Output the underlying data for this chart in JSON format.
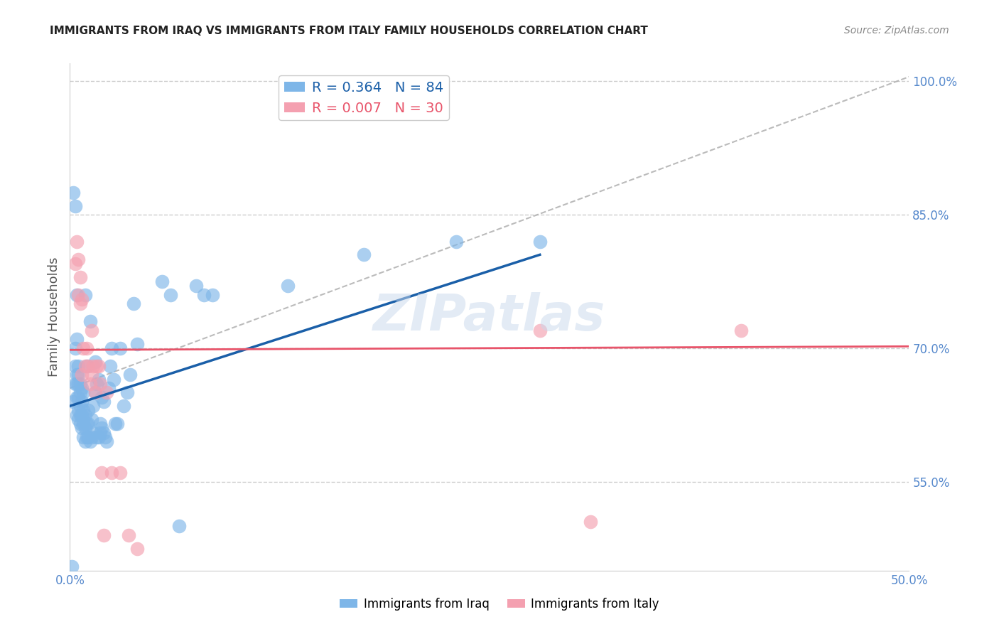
{
  "title": "IMMIGRANTS FROM IRAQ VS IMMIGRANTS FROM ITALY FAMILY HOUSEHOLDS CORRELATION CHART",
  "source_text": "Source: ZipAtlas.com",
  "xlabel": "",
  "ylabel": "Family Households",
  "watermark": "ZIPatlas",
  "xlim": [
    0.0,
    0.5
  ],
  "ylim": [
    0.45,
    1.02
  ],
  "xticks": [
    0.0,
    0.1,
    0.2,
    0.3,
    0.4,
    0.5
  ],
  "xticklabels": [
    "0.0%",
    "",
    "",
    "",
    "",
    "50.0%"
  ],
  "ytick_right": [
    0.55,
    0.7,
    0.85,
    1.0
  ],
  "ytick_right_labels": [
    "55.0%",
    "70.0%",
    "85.0%",
    "100.0%"
  ],
  "legend1_label": "Immigrants from Iraq",
  "legend2_label": "Immigrants from Italy",
  "r_iraq": 0.364,
  "n_iraq": 84,
  "r_italy": 0.007,
  "n_italy": 30,
  "iraq_color": "#7eb6e8",
  "italy_color": "#f4a0b0",
  "iraq_line_color": "#1a5fa8",
  "italy_line_color": "#e8546a",
  "ref_line_color": "#aaaaaa",
  "grid_color": "#cccccc",
  "title_color": "#222222",
  "right_axis_color": "#5588cc",
  "iraq_line_x": [
    0.0,
    0.28
  ],
  "iraq_line_y": [
    0.635,
    0.805
  ],
  "italy_line_x": [
    0.0,
    0.5
  ],
  "italy_line_y": [
    0.698,
    0.702
  ],
  "ref_line_x": [
    0.0,
    0.5
  ],
  "ref_line_y": [
    0.655,
    1.005
  ],
  "iraq_x": [
    0.001,
    0.002,
    0.002,
    0.003,
    0.003,
    0.003,
    0.003,
    0.004,
    0.004,
    0.004,
    0.004,
    0.004,
    0.004,
    0.005,
    0.005,
    0.005,
    0.005,
    0.005,
    0.005,
    0.006,
    0.006,
    0.006,
    0.006,
    0.006,
    0.007,
    0.007,
    0.007,
    0.007,
    0.008,
    0.008,
    0.008,
    0.008,
    0.009,
    0.009,
    0.009,
    0.009,
    0.01,
    0.01,
    0.01,
    0.011,
    0.011,
    0.011,
    0.012,
    0.012,
    0.013,
    0.013,
    0.014,
    0.014,
    0.015,
    0.015,
    0.016,
    0.016,
    0.017,
    0.017,
    0.018,
    0.018,
    0.019,
    0.019,
    0.02,
    0.02,
    0.021,
    0.022,
    0.023,
    0.024,
    0.025,
    0.026,
    0.027,
    0.028,
    0.03,
    0.032,
    0.034,
    0.036,
    0.038,
    0.04,
    0.055,
    0.06,
    0.065,
    0.075,
    0.08,
    0.085,
    0.13,
    0.175,
    0.23,
    0.28
  ],
  "iraq_y": [
    0.455,
    0.64,
    0.875,
    0.66,
    0.68,
    0.7,
    0.86,
    0.625,
    0.645,
    0.66,
    0.67,
    0.71,
    0.76,
    0.62,
    0.63,
    0.645,
    0.66,
    0.67,
    0.68,
    0.615,
    0.625,
    0.635,
    0.65,
    0.66,
    0.61,
    0.625,
    0.64,
    0.655,
    0.6,
    0.615,
    0.63,
    0.65,
    0.595,
    0.61,
    0.625,
    0.76,
    0.6,
    0.615,
    0.68,
    0.6,
    0.615,
    0.63,
    0.595,
    0.73,
    0.6,
    0.62,
    0.605,
    0.635,
    0.65,
    0.685,
    0.6,
    0.66,
    0.6,
    0.665,
    0.605,
    0.615,
    0.61,
    0.645,
    0.605,
    0.64,
    0.6,
    0.595,
    0.655,
    0.68,
    0.7,
    0.665,
    0.615,
    0.615,
    0.7,
    0.635,
    0.65,
    0.67,
    0.75,
    0.705,
    0.775,
    0.76,
    0.5,
    0.77,
    0.76,
    0.76,
    0.77,
    0.805,
    0.82,
    0.82
  ],
  "italy_x": [
    0.003,
    0.004,
    0.005,
    0.005,
    0.006,
    0.006,
    0.007,
    0.007,
    0.008,
    0.009,
    0.01,
    0.011,
    0.012,
    0.013,
    0.013,
    0.014,
    0.015,
    0.016,
    0.017,
    0.018,
    0.019,
    0.02,
    0.022,
    0.025,
    0.03,
    0.035,
    0.04,
    0.28,
    0.31,
    0.4
  ],
  "italy_y": [
    0.795,
    0.82,
    0.76,
    0.8,
    0.75,
    0.78,
    0.67,
    0.755,
    0.7,
    0.68,
    0.7,
    0.68,
    0.66,
    0.67,
    0.72,
    0.68,
    0.65,
    0.68,
    0.68,
    0.66,
    0.56,
    0.49,
    0.65,
    0.56,
    0.56,
    0.49,
    0.475,
    0.72,
    0.505,
    0.72
  ]
}
